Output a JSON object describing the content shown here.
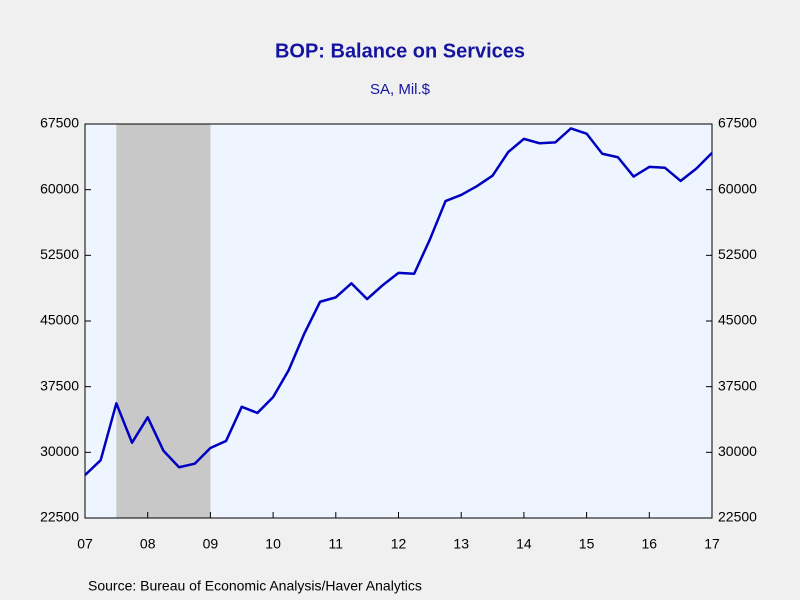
{
  "chart_data": {
    "type": "line",
    "title": "BOP: Balance on Services",
    "subtitle": "SA, Mil.$",
    "source": "Source:  Bureau of Economic Analysis/Haver Analytics",
    "x": [
      2007,
      2007.25,
      2007.5,
      2007.75,
      2008,
      2008.25,
      2008.5,
      2008.75,
      2009,
      2009.25,
      2009.5,
      2009.75,
      2010,
      2010.25,
      2010.5,
      2010.75,
      2011,
      2011.25,
      2011.5,
      2011.75,
      2012,
      2012.25,
      2012.5,
      2012.75,
      2013,
      2013.25,
      2013.5,
      2013.75,
      2014,
      2014.25,
      2014.5,
      2014.75,
      2015,
      2015.25,
      2015.5,
      2015.75,
      2016,
      2016.25,
      2016.5,
      2016.75,
      2017
    ],
    "series": [
      {
        "name": "Balance on Services",
        "color": "#0000c0",
        "values": [
          27400,
          29100,
          35600,
          31100,
          34000,
          30200,
          28300,
          28700,
          30500,
          31300,
          35200,
          34500,
          36300,
          39400,
          43600,
          47200,
          47700,
          49300,
          47500,
          49100,
          50500,
          50400,
          54300,
          58700,
          59400,
          60400,
          61600,
          64300,
          65800,
          65300,
          65400,
          67000,
          66400,
          64100,
          63700,
          61500,
          62600,
          62500,
          61000,
          62400,
          64200
        ]
      }
    ],
    "recession": [
      2007.5,
      2009
    ],
    "xlim": [
      2007,
      2017
    ],
    "xticks": [
      {
        "value": 2007,
        "label": "07"
      },
      {
        "value": 2008,
        "label": "08"
      },
      {
        "value": 2009,
        "label": "09"
      },
      {
        "value": 2010,
        "label": "10"
      },
      {
        "value": 2011,
        "label": "11"
      },
      {
        "value": 2012,
        "label": "12"
      },
      {
        "value": 2013,
        "label": "13"
      },
      {
        "value": 2014,
        "label": "14"
      },
      {
        "value": 2015,
        "label": "15"
      },
      {
        "value": 2016,
        "label": "16"
      },
      {
        "value": 2017,
        "label": "17"
      }
    ],
    "ylim": [
      22500,
      67500
    ],
    "yticks": [
      22500,
      30000,
      37500,
      45000,
      52500,
      60000,
      67500
    ]
  }
}
